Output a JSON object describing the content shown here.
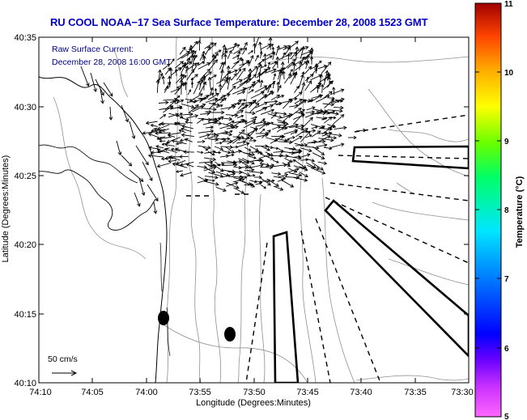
{
  "title": "RU COOL  NOAA−17  Sea Surface Temperature:  December 28, 2008 1523 GMT",
  "annotation": {
    "line1": "Raw Surface Current:",
    "line2": "December 28, 2008 16:00 GMT"
  },
  "scale": {
    "label": "50 cm/s"
  },
  "axes": {
    "xlabel": "Longitude (Degrees:Minutes)",
    "ylabel": "Latitude (Degrees:Minutes)",
    "xticks": [
      "74:10",
      "74:05",
      "74:00",
      "73:55",
      "73:50",
      "73:45",
      "73:40",
      "73:35",
      "73:30"
    ],
    "yticks": [
      "40:35",
      "40:30",
      "40:25",
      "40:20",
      "40:15",
      "40:10"
    ]
  },
  "colorbar": {
    "label": "Temperature (°C)",
    "ticks": [
      "11",
      "10",
      "9",
      "8",
      "7",
      "6",
      "5"
    ],
    "range": [
      5,
      11
    ]
  },
  "colors": {
    "title": "#0000c8",
    "annotation": "#00008b",
    "coastline": "#000000",
    "bathymetry": "#909090"
  }
}
